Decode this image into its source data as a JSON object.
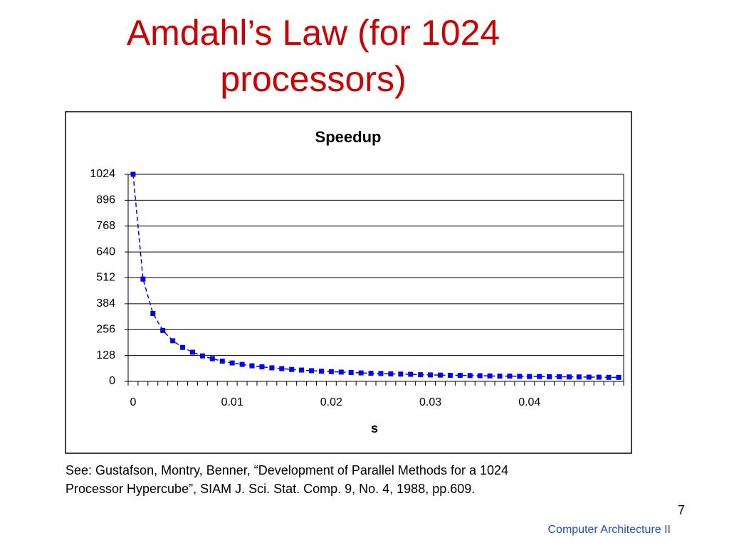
{
  "slide": {
    "title": [
      "Amdahl’s Law (for 1024",
      "processors)"
    ],
    "citation": [
      "See: Gustafson, Montry, Benner, “Development of Parallel Methods for a 1024",
      "Processor Hypercube”, SIAM J. Sci. Stat. Comp. 9, No. 4, 1988, pp.609."
    ],
    "page_number": "7",
    "footer": "Computer Architecture II"
  },
  "chart_data": {
    "type": "line",
    "title": "Speedup",
    "x_label": "s",
    "categories": [
      "0",
      null,
      null,
      null,
      null,
      null,
      null,
      null,
      null,
      null,
      "0.01",
      null,
      null,
      null,
      null,
      null,
      null,
      null,
      null,
      null,
      "0.02",
      null,
      null,
      null,
      null,
      null,
      null,
      null,
      null,
      null,
      "0.03",
      null,
      null,
      null,
      null,
      null,
      null,
      null,
      null,
      null,
      "0.04",
      null,
      null,
      null,
      null,
      null,
      null,
      null,
      null,
      null
    ],
    "values": [
      1024,
      506,
      336,
      252,
      201,
      168,
      144,
      126,
      112,
      100,
      91,
      84,
      77,
      72,
      67,
      63,
      59,
      56,
      53,
      50,
      48,
      46,
      44,
      42,
      40,
      39,
      37,
      36,
      35,
      33,
      32,
      31,
      30,
      30,
      29,
      28,
      27,
      26,
      26,
      25,
      24,
      24,
      23,
      23,
      22,
      22,
      21,
      21,
      20,
      20
    ],
    "color": "#0000ff",
    "marker": "square",
    "line_style": "dashed",
    "ylim": [
      0,
      1024
    ],
    "yticks": [
      0,
      128,
      256,
      384,
      512,
      640,
      768,
      896,
      1024
    ],
    "grid": true
  }
}
